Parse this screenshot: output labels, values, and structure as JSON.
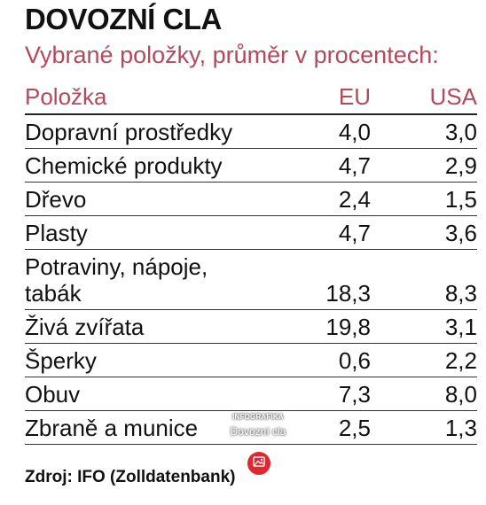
{
  "chart_data": {
    "type": "table",
    "title": "DOVOZNÍ CLA",
    "subtitle": "Vybrané položky, průměr v procentech:",
    "columns": [
      "Položka",
      "EU",
      "USA"
    ],
    "rows": [
      {
        "item": "Dopravní prostředky",
        "eu": "4,0",
        "usa": "3,0"
      },
      {
        "item": "Chemické produkty",
        "eu": "4,7",
        "usa": "2,9"
      },
      {
        "item": "Dřevo",
        "eu": "2,4",
        "usa": "1,5"
      },
      {
        "item": "Plasty",
        "eu": "4,7",
        "usa": "3,6"
      },
      {
        "item_line1": "Potraviny, nápoje,",
        "item_line2": "tabák",
        "eu": "18,3",
        "usa": "8,3"
      },
      {
        "item": "Živá zvířata",
        "eu": "19,8",
        "usa": "3,1"
      },
      {
        "item": "Šperky",
        "eu": "0,6",
        "usa": "2,2"
      },
      {
        "item": "Obuv",
        "eu": "7,3",
        "usa": "8,0"
      },
      {
        "item": "Zbraně a munice",
        "eu": "2,5",
        "usa": "1,3"
      }
    ],
    "source": "Zdroj: IFO (Zolldatenbank)"
  },
  "watermark": {
    "kicker": "INFOGRAFIKA",
    "name": "Dovozní cla",
    "icon": "image-icon"
  },
  "colors": {
    "accent": "#b34a5a",
    "button": "#e0262f",
    "text": "#111111"
  }
}
